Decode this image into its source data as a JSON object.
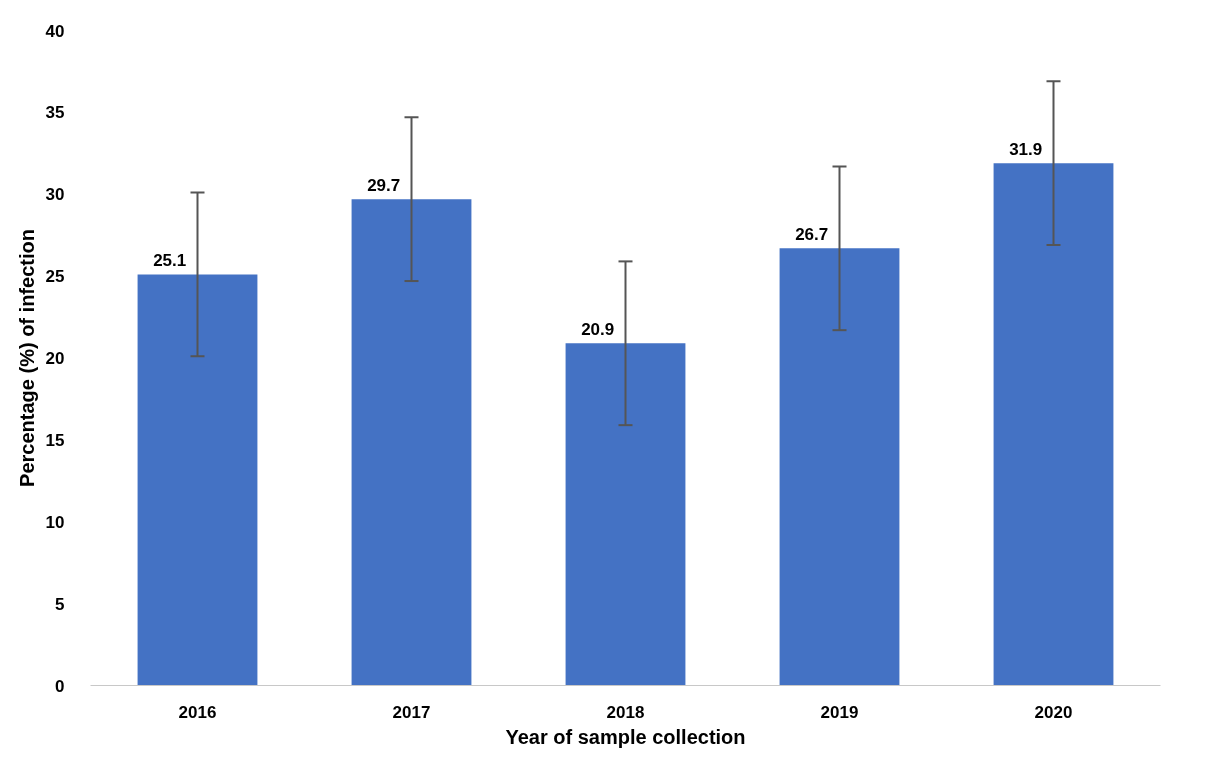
{
  "chart_data": {
    "type": "bar",
    "xlabel": "Year of sample collection",
    "ylabel": "Percentage (%) of infection",
    "categories": [
      "2016",
      "2017",
      "2018",
      "2019",
      "2020"
    ],
    "values": [
      25.1,
      29.7,
      20.9,
      26.7,
      31.9
    ],
    "errors": [
      5,
      5,
      5,
      5,
      5
    ],
    "color": "#4472c4",
    "ylim": [
      0,
      40
    ],
    "yticks": [
      0,
      5,
      10,
      15,
      20,
      25,
      30,
      35,
      40
    ],
    "data_labels": true,
    "grid": false
  }
}
